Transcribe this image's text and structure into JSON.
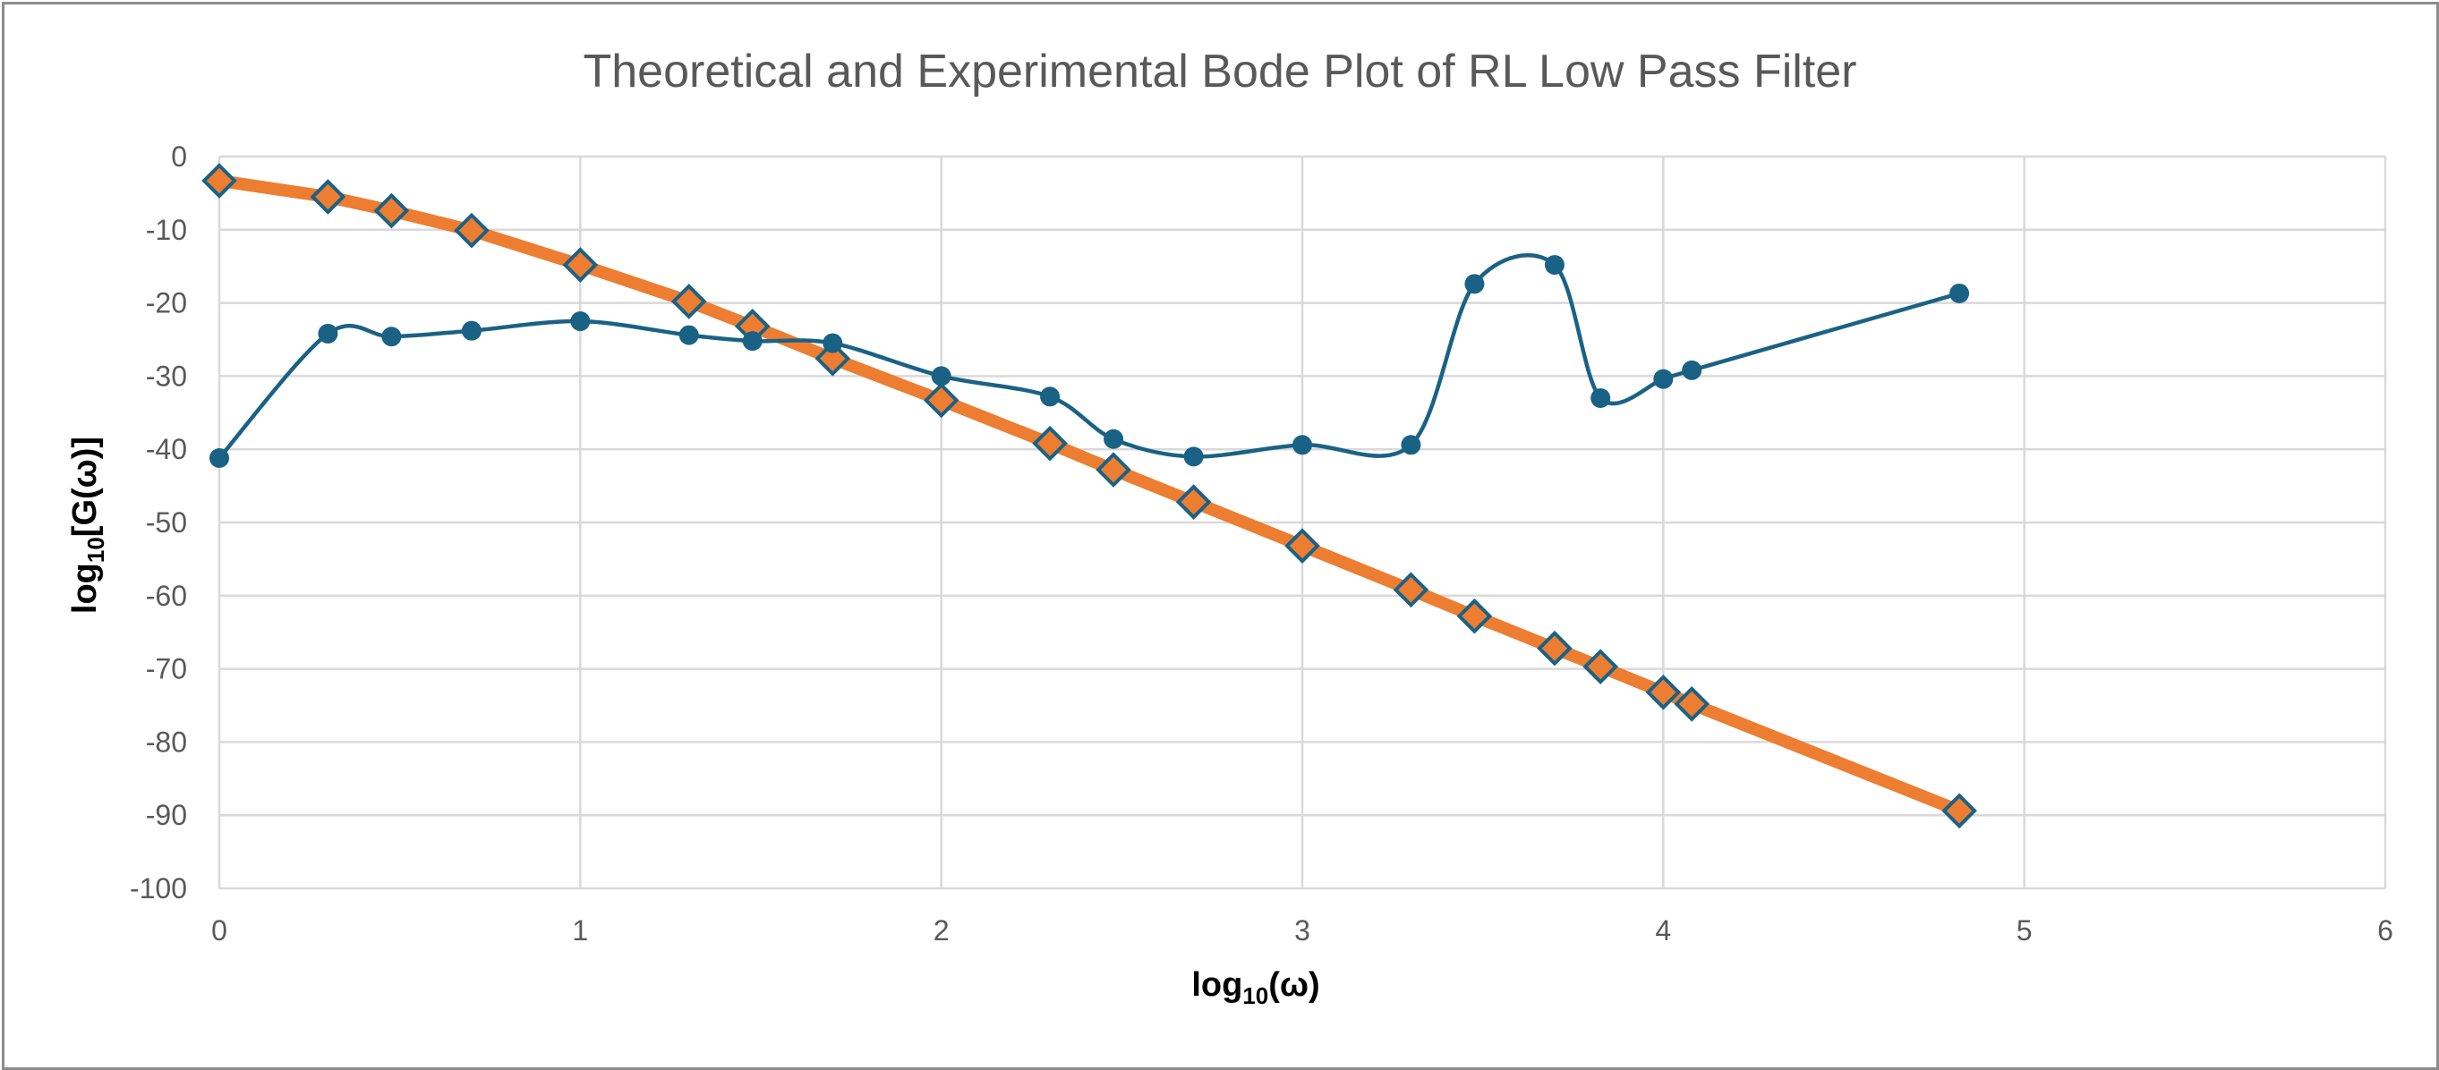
{
  "chart_data": {
    "type": "scatter",
    "title": "Theoretical and Experimental Bode Plot of RL Low Pass Filter",
    "xlabel": {
      "main": "log",
      "sub": "10",
      "rest": "(ω)"
    },
    "ylabel": {
      "main": "log",
      "sub": "10",
      "rest": "[G(ω)]"
    },
    "xlim": [
      0,
      6
    ],
    "ylim": [
      -100,
      0
    ],
    "xticks": [
      0,
      1,
      2,
      3,
      4,
      5,
      6
    ],
    "yticks": [
      0,
      -10,
      -20,
      -30,
      -40,
      -50,
      -60,
      -70,
      -80,
      -90,
      -100
    ],
    "grid": true,
    "legend": "none",
    "series": [
      {
        "style": "smooth-line-circles",
        "color": "#1a6285",
        "x": [
          0,
          0.301,
          0.477,
          0.699,
          1,
          1.301,
          1.477,
          1.699,
          2,
          2.301,
          2.477,
          2.699,
          3,
          3.301,
          3.477,
          3.699,
          3.826,
          4,
          4.079,
          4.82
        ],
        "y": [
          -41.2,
          -24.2,
          -24.6,
          -23.8,
          -22.5,
          -24.4,
          -25.2,
          -25.5,
          -30,
          -32.8,
          -38.6,
          -41,
          -39.4,
          -39.4,
          -17.4,
          -14.8,
          -33,
          -30.4,
          -29.2,
          -18.7
        ]
      },
      {
        "style": "line-diamonds",
        "color": "#ed7d31",
        "marker_edge": "#1a6285",
        "x": [
          0,
          0.301,
          0.477,
          0.699,
          1,
          1.301,
          1.477,
          1.699,
          2,
          2.301,
          2.477,
          2.699,
          3,
          3.301,
          3.477,
          3.699,
          3.826,
          4,
          4.079,
          4.82
        ],
        "y": [
          -3.3,
          -5.5,
          -7.4,
          -10.1,
          -14.8,
          -19.8,
          -23.2,
          -27.6,
          -33.3,
          -39.2,
          -42.8,
          -47.2,
          -53.2,
          -59.2,
          -62.8,
          -67.2,
          -69.7,
          -73.2,
          -74.8,
          -89.4
        ]
      }
    ]
  }
}
